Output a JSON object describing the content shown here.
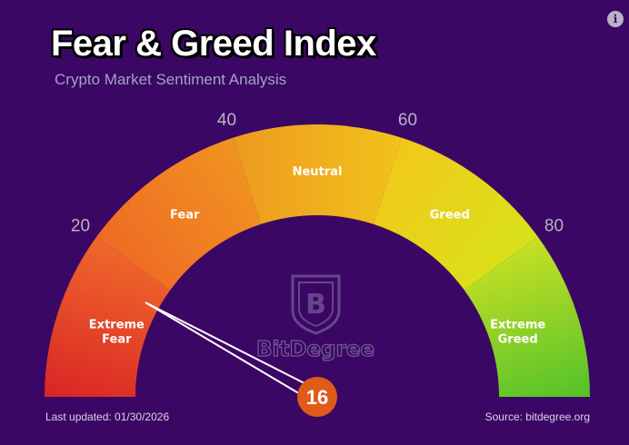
{
  "title": "Fear & Greed Index",
  "subtitle": "Crypto Market Sentiment Analysis",
  "footer": {
    "last_updated": "Last updated: 01/30/2026",
    "source": "Source: bitdegree.org"
  },
  "watermark": "BitDegree",
  "chart_data": {
    "type": "gauge",
    "title": "Fear & Greed Index",
    "subtitle": "Crypto Market Sentiment Analysis",
    "value": 16,
    "range": [
      0,
      100
    ],
    "ticks": [
      20,
      40,
      60,
      80
    ],
    "zones": [
      {
        "label": [
          "Extreme",
          "Fear"
        ],
        "from": 0,
        "to": 20,
        "colors": [
          "#d92525",
          "#f0692a"
        ]
      },
      {
        "label": [
          "Fear"
        ],
        "from": 20,
        "to": 40,
        "colors": [
          "#ef6a25",
          "#f09420"
        ]
      },
      {
        "label": [
          "Neutral"
        ],
        "from": 40,
        "to": 60,
        "colors": [
          "#ee9a1f",
          "#f0c31a"
        ]
      },
      {
        "label": [
          "Greed"
        ],
        "from": 60,
        "to": 80,
        "colors": [
          "#f2c81a",
          "#d8e21a"
        ]
      },
      {
        "label": [
          "Extreme",
          "Greed"
        ],
        "from": 80,
        "to": 100,
        "colors": [
          "#c8e024",
          "#52c22a"
        ]
      }
    ],
    "colors": {
      "background": "#3b0764",
      "needle_badge": "#e05a1a",
      "tick_label": "#b9b3c4"
    }
  }
}
